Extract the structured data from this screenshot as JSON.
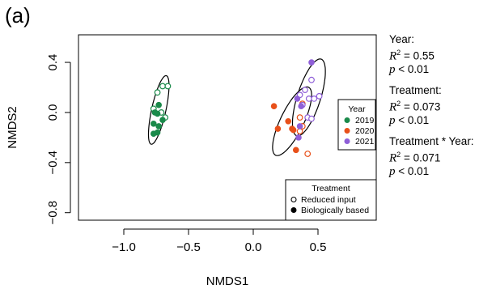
{
  "panel_label": "(a)",
  "stats": [
    {
      "heading": "Year:",
      "r2_label": "R",
      "r2_sup": "2",
      "r2_value": " = 0.55",
      "p_label": "p",
      "p_value": " < 0.01"
    },
    {
      "heading": "Treatment:",
      "r2_label": "R",
      "r2_sup": "2",
      "r2_value": " = 0.073",
      "p_label": "p",
      "p_value": " < 0.01"
    },
    {
      "heading": "Treatment * Year:",
      "r2_label": "R",
      "r2_sup": "2",
      "r2_value": " = 0.071",
      "p_label": "p",
      "p_value": " < 0.01"
    }
  ],
  "chart_data": {
    "type": "scatter",
    "xlabel": "NMDS1",
    "ylabel": "NMDS2",
    "xlim": [
      -1.35,
      0.95
    ],
    "ylim": [
      -0.86,
      0.62
    ],
    "xticks": [
      -1.0,
      -0.5,
      0.0,
      0.5
    ],
    "xtick_labels": [
      "−1.0",
      "−0.5",
      "0.0",
      "0.5"
    ],
    "yticks": [
      -0.8,
      -0.4,
      0.0,
      0.4
    ],
    "ytick_labels": [
      "−0.8",
      "−0.4",
      "0.0",
      "0.4"
    ],
    "grid": false,
    "legend_year": {
      "title": "Year",
      "position": "right",
      "entries": [
        {
          "label": "2019",
          "color": "#1a8a4a"
        },
        {
          "label": "2020",
          "color": "#e8501a"
        },
        {
          "label": "2021",
          "color": "#8f5fd8"
        }
      ]
    },
    "legend_treatment": {
      "title": "Treatment",
      "position": "bottom-right",
      "entries": [
        {
          "label": "Reduced input",
          "marker": "open"
        },
        {
          "label": "Biologically based",
          "marker": "filled"
        }
      ]
    },
    "series": [
      {
        "year": "2019",
        "color": "#1a8a4a",
        "reduced_input": [
          [
            -0.74,
            0.16
          ],
          [
            -0.7,
            0.21
          ],
          [
            -0.66,
            0.21
          ],
          [
            -0.77,
            0.03
          ],
          [
            -0.71,
            0.0
          ],
          [
            -0.68,
            -0.04
          ]
        ],
        "biologically_based": [
          [
            -0.73,
            0.06
          ],
          [
            -0.76,
            0.0
          ],
          [
            -0.74,
            -0.01
          ],
          [
            -0.7,
            -0.06
          ],
          [
            -0.77,
            -0.09
          ],
          [
            -0.73,
            -0.11
          ],
          [
            -0.74,
            -0.16
          ],
          [
            -0.77,
            -0.17
          ]
        ]
      },
      {
        "year": "2020",
        "color": "#e8501a",
        "reduced_input": [
          [
            0.38,
            0.07
          ],
          [
            0.36,
            -0.04
          ],
          [
            0.38,
            -0.11
          ],
          [
            0.36,
            -0.15
          ],
          [
            0.42,
            -0.33
          ]
        ],
        "biologically_based": [
          [
            0.16,
            0.05
          ],
          [
            0.19,
            -0.13
          ],
          [
            0.27,
            -0.07
          ],
          [
            0.3,
            -0.13
          ],
          [
            0.31,
            -0.14
          ],
          [
            0.33,
            -0.3
          ]
        ]
      },
      {
        "year": "2021",
        "color": "#8f5fd8",
        "reduced_input": [
          [
            0.45,
            0.26
          ],
          [
            0.4,
            0.18
          ],
          [
            0.36,
            0.14
          ],
          [
            0.43,
            0.11
          ],
          [
            0.38,
            0.06
          ],
          [
            0.47,
            0.11
          ],
          [
            0.51,
            0.13
          ],
          [
            0.42,
            -0.04
          ],
          [
            0.45,
            -0.05
          ]
        ],
        "biologically_based": [
          [
            0.45,
            0.4
          ],
          [
            0.34,
            0.11
          ],
          [
            0.37,
            0.05
          ],
          [
            0.36,
            -0.11
          ],
          [
            0.35,
            -0.2
          ]
        ]
      }
    ],
    "ellipses": [
      {
        "year": "2019",
        "center": [
          -0.73,
          0.02
        ],
        "a": 0.28,
        "b": 0.055,
        "angle_deg": 78
      },
      {
        "year": "2020",
        "center": [
          0.3,
          -0.07
        ],
        "a": 0.3,
        "b": 0.09,
        "angle_deg": 65
      },
      {
        "year": "2021",
        "center": [
          0.43,
          0.12
        ],
        "a": 0.32,
        "b": 0.09,
        "angle_deg": 73
      }
    ]
  }
}
